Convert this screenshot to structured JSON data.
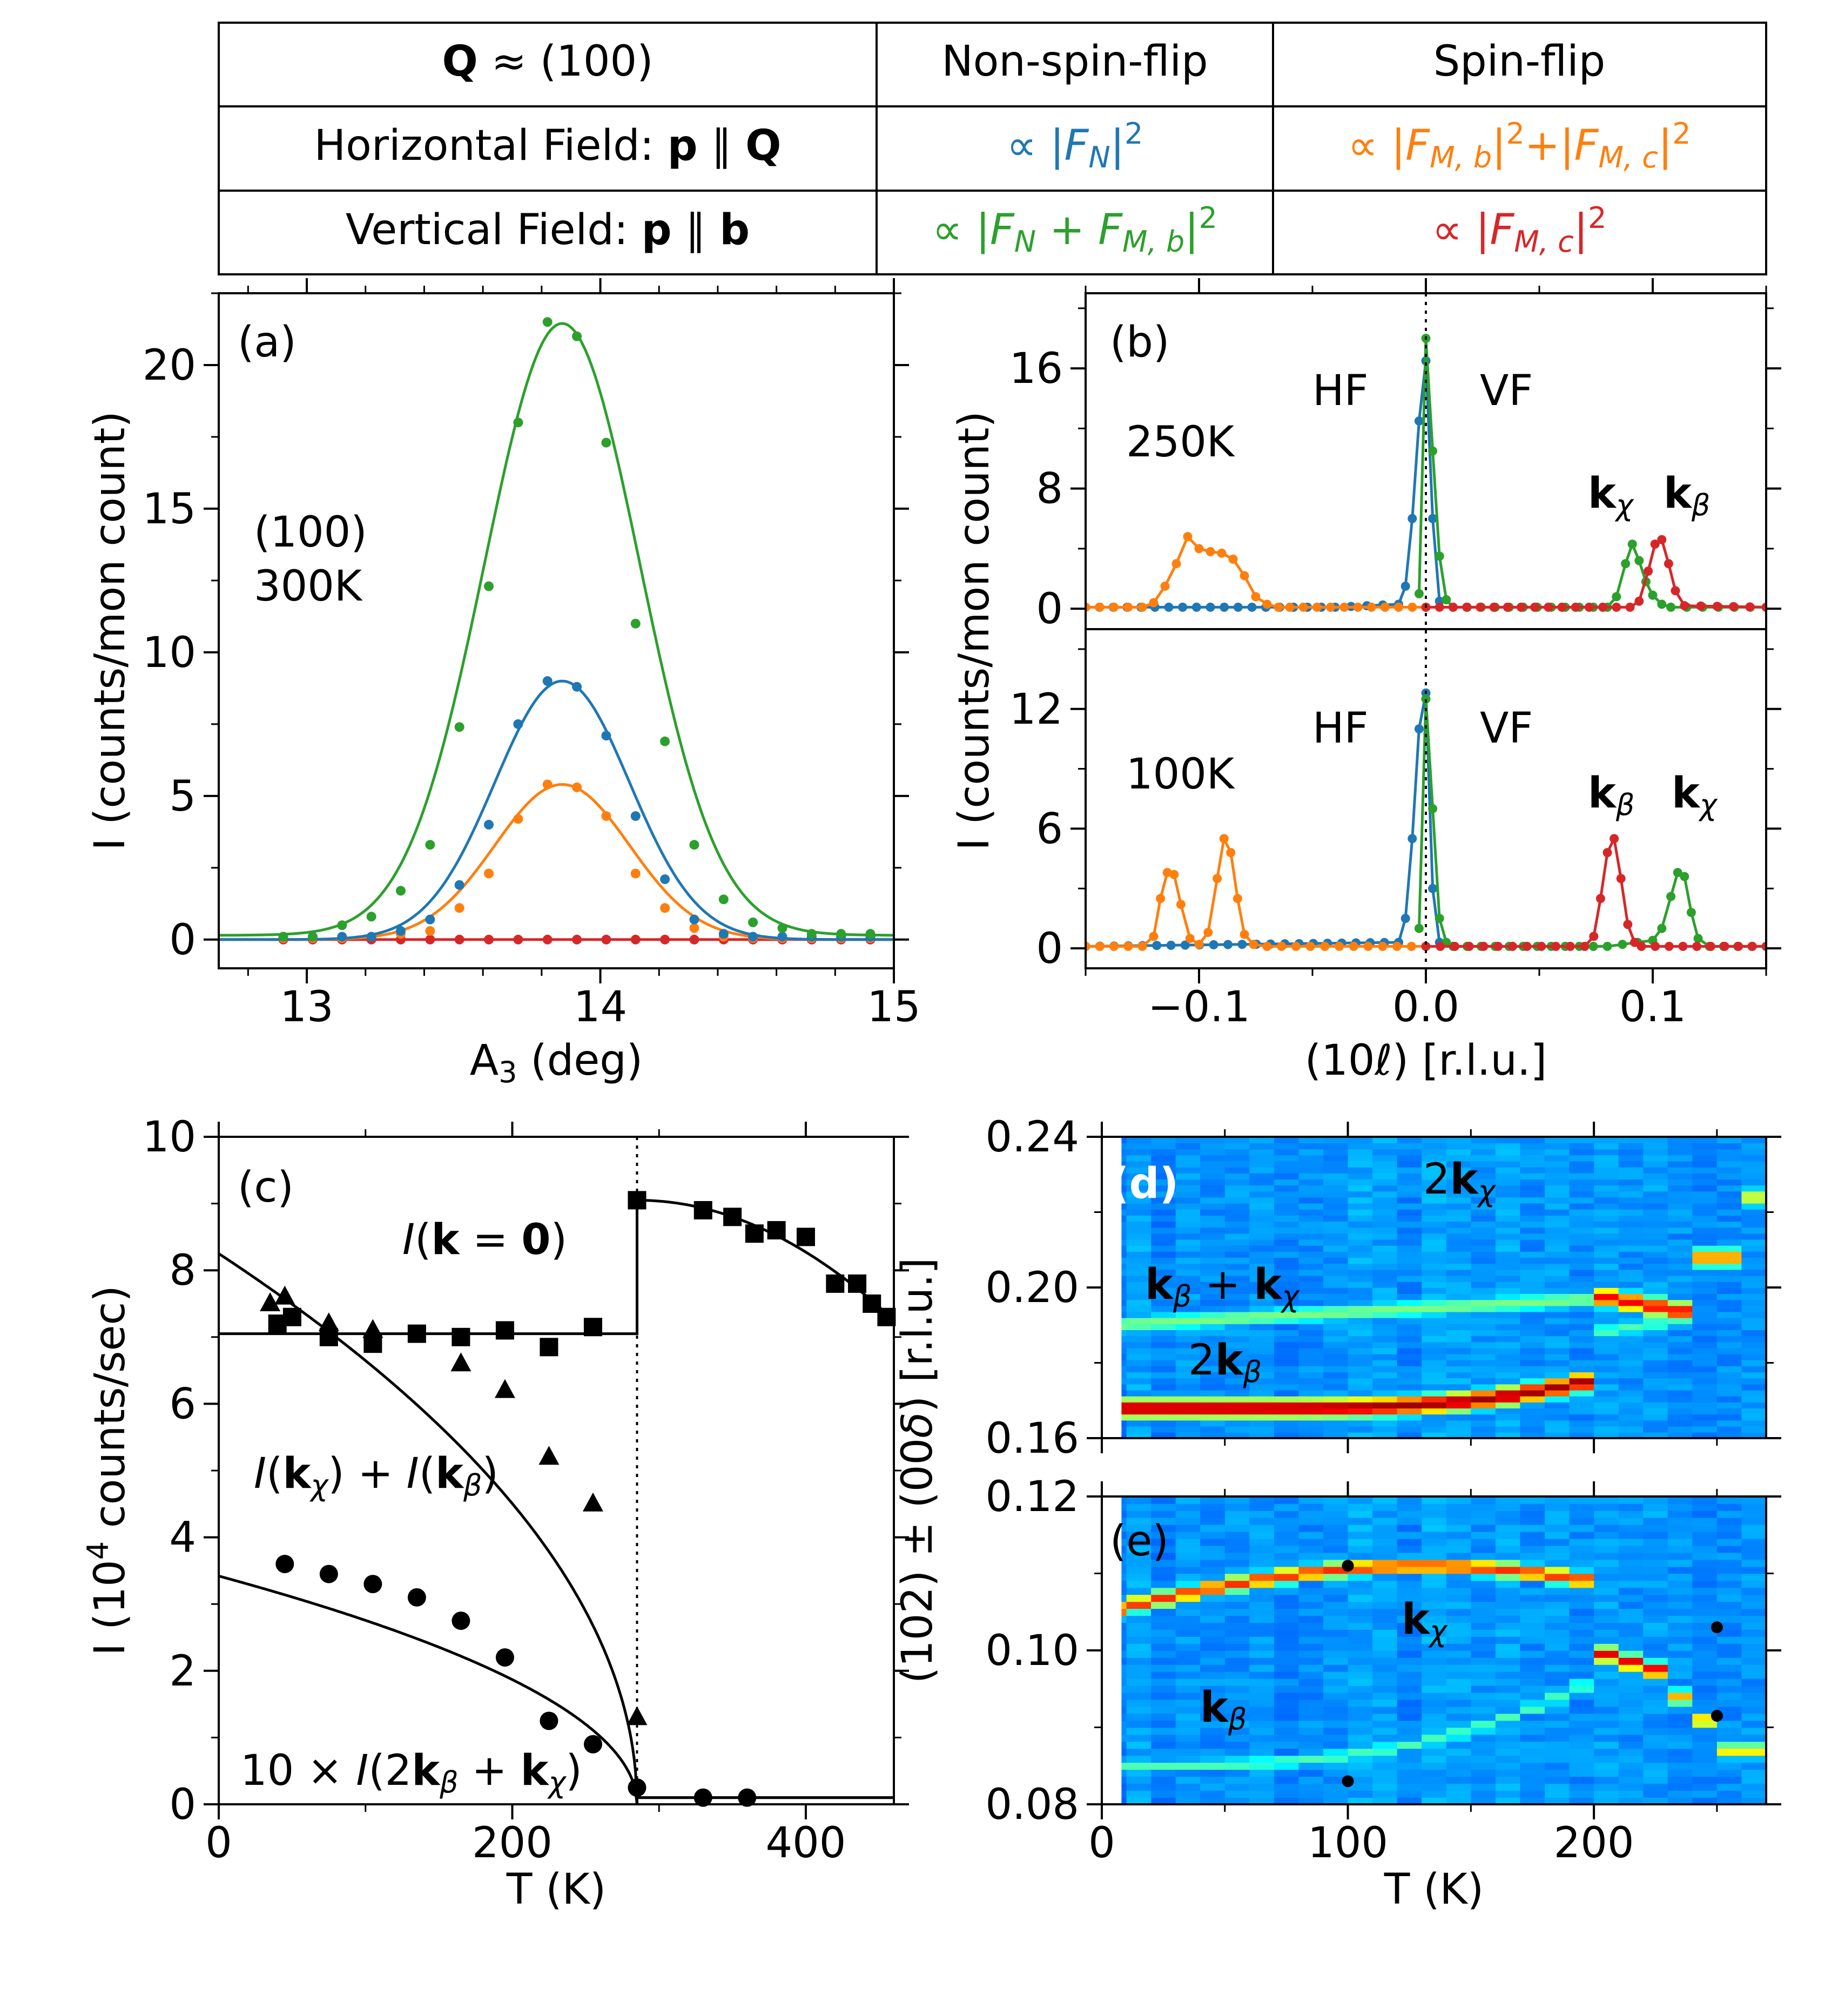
{
  "table": {
    "header": [
      "Q ≈ (100)",
      "Non-spin-flip",
      "Spin-flip"
    ],
    "rows": [
      {
        "label": "Horizontal Field: p ∥ Q",
        "nsf": "∝ |F_N|²",
        "sf": "∝ |F_M,b|²+|F_M,c|²"
      },
      {
        "label": "Vertical Field: p ∥ b",
        "nsf": "∝ |F_N + F_M,b|²",
        "sf": "∝ |F_M,c|²"
      }
    ]
  },
  "colors": {
    "blue": "#1f77b4",
    "orange": "#ff7f0e",
    "green": "#2ca02c",
    "red": "#d62728"
  },
  "chart_data": [
    {
      "id": "a",
      "type": "scatter",
      "panel_label": "(a)",
      "annotation": [
        "(100)",
        "300K"
      ],
      "xlabel": "A3 (deg)",
      "ylabel": "I (counts/mon count)",
      "xlim": [
        12.7,
        15
      ],
      "ylim": [
        -1,
        22.5
      ],
      "xticks": [
        13,
        14,
        15
      ],
      "yticks": [
        0,
        5,
        10,
        15,
        20
      ],
      "series": [
        {
          "name": "green",
          "color": "#2ca02c",
          "center": 13.87,
          "sigma": 0.265,
          "amp": 21.3,
          "base": 0.15,
          "x": [
            12.92,
            13.02,
            13.12,
            13.22,
            13.32,
            13.42,
            13.52,
            13.62,
            13.72,
            13.82,
            13.92,
            14.02,
            14.12,
            14.22,
            14.32,
            14.42,
            14.52,
            14.62,
            14.72,
            14.82,
            14.92
          ],
          "y": [
            0.1,
            0.1,
            0.5,
            0.8,
            1.7,
            3.3,
            7.4,
            12.3,
            18.0,
            21.5,
            21.0,
            17.3,
            11.0,
            6.9,
            3.3,
            1.4,
            0.6,
            0.4,
            0.2,
            0.2,
            0.2
          ]
        },
        {
          "name": "blue",
          "color": "#1f77b4",
          "center": 13.87,
          "sigma": 0.23,
          "amp": 9.0,
          "base": 0.0,
          "x": [
            12.92,
            13.02,
            13.12,
            13.22,
            13.32,
            13.42,
            13.52,
            13.62,
            13.72,
            13.82,
            13.92,
            14.02,
            14.12,
            14.22,
            14.32,
            14.42,
            14.52,
            14.62,
            14.72,
            14.82,
            14.92
          ],
          "y": [
            0.1,
            0.1,
            0.1,
            0.1,
            0.3,
            0.7,
            1.9,
            4.0,
            7.5,
            9.0,
            8.8,
            7.1,
            4.3,
            2.1,
            0.7,
            0.2,
            0.1,
            0.1,
            0.1,
            0.1,
            0.1
          ]
        },
        {
          "name": "orange",
          "color": "#ff7f0e",
          "center": 13.87,
          "sigma": 0.23,
          "amp": 5.4,
          "base": 0.0,
          "x": [
            12.92,
            13.02,
            13.12,
            13.22,
            13.32,
            13.42,
            13.52,
            13.62,
            13.72,
            13.82,
            13.92,
            14.02,
            14.12,
            14.22,
            14.32,
            14.42,
            14.52,
            14.62,
            14.72,
            14.82,
            14.92
          ],
          "y": [
            0.05,
            0.05,
            0.05,
            0.1,
            0.2,
            0.3,
            1.1,
            2.3,
            4.2,
            5.4,
            5.3,
            4.3,
            2.3,
            1.1,
            0.4,
            0.1,
            0.05,
            0.05,
            0.05,
            0.05,
            0.05
          ]
        },
        {
          "name": "red",
          "color": "#d62728",
          "center": 13.87,
          "sigma": 0.25,
          "amp": 0.0,
          "base": 0.0,
          "x": [
            12.92,
            13.02,
            13.12,
            13.22,
            13.32,
            13.42,
            13.52,
            13.62,
            13.72,
            13.82,
            13.92,
            14.02,
            14.12,
            14.22,
            14.32,
            14.42,
            14.52,
            14.62,
            14.72,
            14.82,
            14.92
          ],
          "y": [
            0,
            0,
            0,
            0,
            0,
            0,
            0,
            0,
            0,
            0,
            0,
            0,
            0,
            0,
            0,
            0,
            0,
            0,
            0,
            0,
            0
          ]
        }
      ]
    },
    {
      "id": "b_top",
      "type": "line",
      "panel_label": "(b)",
      "annotation": [
        "250K",
        "HF",
        "VF",
        "kχ",
        "kβ"
      ],
      "xlim": [
        -0.15,
        0.15
      ],
      "ylim": [
        -1,
        21
      ],
      "yticks": [
        0,
        8,
        16
      ],
      "series": [
        {
          "name": "blue (HF NSF)",
          "color": "#1f77b4",
          "x": [
            -0.15,
            -0.04,
            -0.012,
            -0.009,
            -0.006,
            -0.003,
            0.0,
            0.003,
            0.006
          ],
          "y": [
            0.1,
            0.1,
            0.3,
            1.5,
            6.0,
            12.5,
            16.5,
            6.0,
            0.5
          ]
        },
        {
          "name": "orange (HF SF)",
          "color": "#ff7f0e",
          "x": [
            -0.15,
            -0.125,
            -0.12,
            -0.115,
            -0.11,
            -0.105,
            -0.1,
            -0.095,
            -0.09,
            -0.085,
            -0.08,
            -0.075,
            -0.07,
            -0.065,
            -0.06,
            0.0
          ],
          "y": [
            0.1,
            0.1,
            0.4,
            1.5,
            3.0,
            4.8,
            4.0,
            3.8,
            3.7,
            3.3,
            2.2,
            0.8,
            0.3,
            0.1,
            0.1,
            0.1
          ]
        },
        {
          "name": "green (VF NSF)",
          "color": "#2ca02c",
          "x": [
            -0.003,
            0.0,
            0.003,
            0.006,
            0.009,
            0.012,
            0.08,
            0.084,
            0.088,
            0.091,
            0.094,
            0.097,
            0.1,
            0.104,
            0.108,
            0.15
          ],
          "y": [
            1.0,
            18.0,
            10.5,
            3.5,
            0.6,
            0.1,
            0.1,
            0.8,
            3.0,
            4.3,
            3.2,
            1.8,
            0.9,
            0.3,
            0.1,
            0.1
          ]
        },
        {
          "name": "red (VF SF)",
          "color": "#d62728",
          "x": [
            0.0,
            0.09,
            0.094,
            0.098,
            0.101,
            0.104,
            0.107,
            0.11,
            0.114,
            0.15
          ],
          "y": [
            0.1,
            0.1,
            0.5,
            2.5,
            4.3,
            4.6,
            3.0,
            1.2,
            0.2,
            0.1
          ]
        }
      ]
    },
    {
      "id": "b_bottom",
      "type": "line",
      "annotation": [
        "100K",
        "HF",
        "VF",
        "kβ",
        "kχ"
      ],
      "xlabel": "(10ℓ) [r.l.u.]",
      "ylabel": "I (counts/mon count)",
      "xlim": [
        -0.15,
        0.15
      ],
      "ylim": [
        -1,
        16
      ],
      "yticks": [
        0,
        6,
        12
      ],
      "xticks": [
        -0.1,
        0.0,
        0.1
      ],
      "xticklabels": [
        "−0.1",
        "0.0",
        "0.1"
      ],
      "series": [
        {
          "name": "blue (HF NSF)",
          "color": "#1f77b4",
          "x": [
            -0.15,
            -0.012,
            -0.009,
            -0.006,
            -0.003,
            0.0,
            0.003,
            0.006
          ],
          "y": [
            0.1,
            0.3,
            1.5,
            5.5,
            11.0,
            12.8,
            3.0,
            0.3
          ]
        },
        {
          "name": "orange (HF SF)",
          "color": "#ff7f0e",
          "x": [
            -0.15,
            -0.125,
            -0.12,
            -0.117,
            -0.114,
            -0.111,
            -0.108,
            -0.104,
            -0.1,
            -0.096,
            -0.092,
            -0.089,
            -0.086,
            -0.083,
            -0.08,
            -0.076,
            -0.07,
            0.0
          ],
          "y": [
            0.1,
            0.1,
            0.6,
            2.5,
            3.8,
            3.7,
            2.2,
            0.5,
            0.2,
            0.8,
            3.5,
            5.5,
            4.8,
            2.5,
            0.7,
            0.2,
            0.1,
            0.1
          ]
        },
        {
          "name": "green (VF NSF)",
          "color": "#2ca02c",
          "x": [
            -0.003,
            0.0,
            0.003,
            0.006,
            0.009,
            0.012,
            0.08,
            0.1,
            0.104,
            0.108,
            0.111,
            0.114,
            0.117,
            0.12,
            0.125,
            0.15
          ],
          "y": [
            1.0,
            12.5,
            7.0,
            1.5,
            0.3,
            0.1,
            0.1,
            0.4,
            1.0,
            2.6,
            3.8,
            3.6,
            1.8,
            0.5,
            0.1,
            0.1
          ]
        },
        {
          "name": "red (VF SF)",
          "color": "#d62728",
          "x": [
            0.0,
            0.07,
            0.074,
            0.077,
            0.08,
            0.083,
            0.086,
            0.089,
            0.092,
            0.095,
            0.15
          ],
          "y": [
            0.1,
            0.1,
            0.6,
            2.5,
            4.8,
            5.5,
            3.5,
            1.2,
            0.3,
            0.1,
            0.1
          ]
        }
      ]
    },
    {
      "id": "c",
      "type": "scatter",
      "panel_label": "(c)",
      "annotation": [
        "I(k = 0)",
        "I(kχ) + I(kβ)",
        "10 × I(2kβ + kχ)"
      ],
      "xlabel": "T (K)",
      "ylabel": "I (10⁴ counts/sec)",
      "xlim": [
        0,
        460
      ],
      "ylim": [
        0,
        10
      ],
      "xticks": [
        0,
        200,
        400
      ],
      "yticks": [
        0,
        2,
        4,
        6,
        8,
        10
      ],
      "transition_T": 285,
      "squares": {
        "x": [
          40,
          50,
          75,
          105,
          135,
          165,
          195,
          225,
          255,
          285,
          330,
          350,
          365,
          380,
          400,
          420,
          435,
          445,
          455
        ],
        "y": [
          7.2,
          7.3,
          7.0,
          6.9,
          7.05,
          7.0,
          7.1,
          6.85,
          7.15,
          9.05,
          8.9,
          8.8,
          8.55,
          8.6,
          8.5,
          7.8,
          7.8,
          7.5,
          7.3
        ]
      },
      "triangles": {
        "x": [
          35,
          45,
          75,
          105,
          165,
          195,
          225,
          255,
          285
        ],
        "y": [
          7.5,
          7.6,
          7.2,
          7.1,
          6.6,
          6.2,
          5.2,
          4.5,
          1.3
        ]
      },
      "circles": {
        "x": [
          45,
          75,
          105,
          135,
          165,
          195,
          225,
          255,
          285,
          330,
          360
        ],
        "y": [
          3.6,
          3.45,
          3.3,
          3.1,
          2.75,
          2.2,
          1.25,
          0.9,
          0.25,
          0.1,
          0.1
        ]
      }
    },
    {
      "id": "d",
      "type": "heatmap",
      "panel_label": "(d)",
      "annotation": [
        "2kχ",
        "kβ + kχ",
        "2kβ"
      ],
      "xlim": [
        0,
        270
      ],
      "ylim": [
        0.16,
        0.24
      ],
      "yticks": [
        0.16,
        0.2,
        0.24
      ],
      "yticklabels": [
        "0.16",
        "0.20",
        "0.24"
      ]
    },
    {
      "id": "e",
      "type": "heatmap",
      "panel_label": "(e)",
      "annotation": [
        "kχ",
        "kβ"
      ],
      "xlabel": "T (K)",
      "ylabel": "(102) ± (00δ) [r.l.u.]",
      "xlim": [
        0,
        270
      ],
      "ylim": [
        0.08,
        0.12
      ],
      "xticks": [
        0,
        100,
        200
      ],
      "yticks": [
        0.08,
        0.1,
        0.12
      ],
      "yticklabels": [
        "0.08",
        "0.10",
        "0.12"
      ],
      "markers": {
        "x": [
          100,
          100,
          250,
          250
        ],
        "y": [
          0.111,
          0.083,
          0.103,
          0.0915
        ]
      }
    }
  ]
}
